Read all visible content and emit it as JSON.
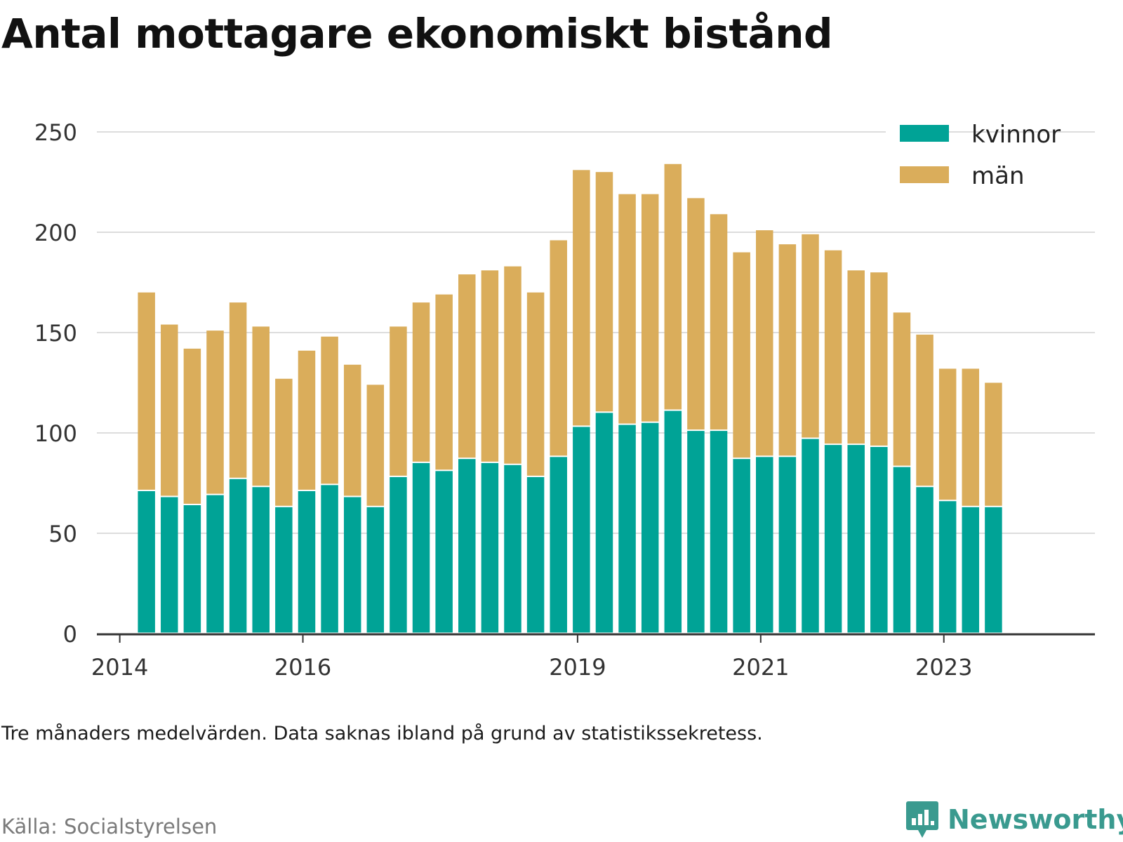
{
  "title": "Antal mottagare ekonomiskt bistånd",
  "note": "Tre månaders medelvärden. Data saknas ibland på grund av statistikssekretess.",
  "source": "Källa: Socialstyrelsen",
  "brand": "Newsworthy",
  "colors": {
    "kvinnor": "#00a396",
    "man": "#daad5b",
    "grid": "#dddddd",
    "axis": "#333333",
    "brand": "#3a9a8f"
  },
  "chart_data": {
    "type": "bar",
    "stacked": true,
    "title": "Antal mottagare ekonomiskt bistånd",
    "xlabel": "",
    "ylabel": "",
    "ylim": [
      0,
      250
    ],
    "yticks": [
      0,
      50,
      100,
      150,
      200,
      250
    ],
    "grid": true,
    "legend_position": "top-right",
    "x_axis": {
      "ticks": [
        {
          "label": "2014",
          "year": 2014
        },
        {
          "label": "2016",
          "year": 2016
        },
        {
          "label": "2019",
          "year": 2019
        },
        {
          "label": "2021",
          "year": 2021
        },
        {
          "label": "2023",
          "year": 2023
        }
      ]
    },
    "x": [
      "2014-04",
      "2014-07",
      "2014-10",
      "2015-01",
      "2015-04",
      "2015-07",
      "2015-10",
      "2016-01",
      "2016-04",
      "2016-07",
      "2016-10",
      "2017-01",
      "2017-04",
      "2017-07",
      "2017-10",
      "2018-01",
      "2018-04",
      "2018-07",
      "2018-10",
      "2019-01",
      "2019-04",
      "2019-07",
      "2019-10",
      "2020-01",
      "2020-04",
      "2020-07",
      "2020-10",
      "2021-01",
      "2021-04",
      "2021-07",
      "2021-10",
      "2022-01",
      "2022-04",
      "2022-07",
      "2022-10",
      "2023-01",
      "2023-04",
      "2023-07"
    ],
    "series": [
      {
        "name": "kvinnor",
        "color": "#00a396",
        "values": [
          71,
          68,
          64,
          69,
          77,
          73,
          63,
          71,
          74,
          68,
          63,
          78,
          85,
          81,
          87,
          85,
          84,
          78,
          88,
          103,
          110,
          104,
          105,
          111,
          101,
          101,
          87,
          88,
          88,
          97,
          94,
          94,
          93,
          83,
          73,
          66,
          63,
          63
        ]
      },
      {
        "name": "män",
        "color": "#daad5b",
        "values": [
          99,
          86,
          78,
          82,
          88,
          80,
          64,
          70,
          74,
          66,
          61,
          75,
          80,
          88,
          92,
          96,
          99,
          92,
          108,
          128,
          120,
          115,
          114,
          123,
          116,
          108,
          103,
          113,
          106,
          102,
          97,
          87,
          87,
          77,
          76,
          66,
          69,
          62
        ]
      }
    ]
  }
}
